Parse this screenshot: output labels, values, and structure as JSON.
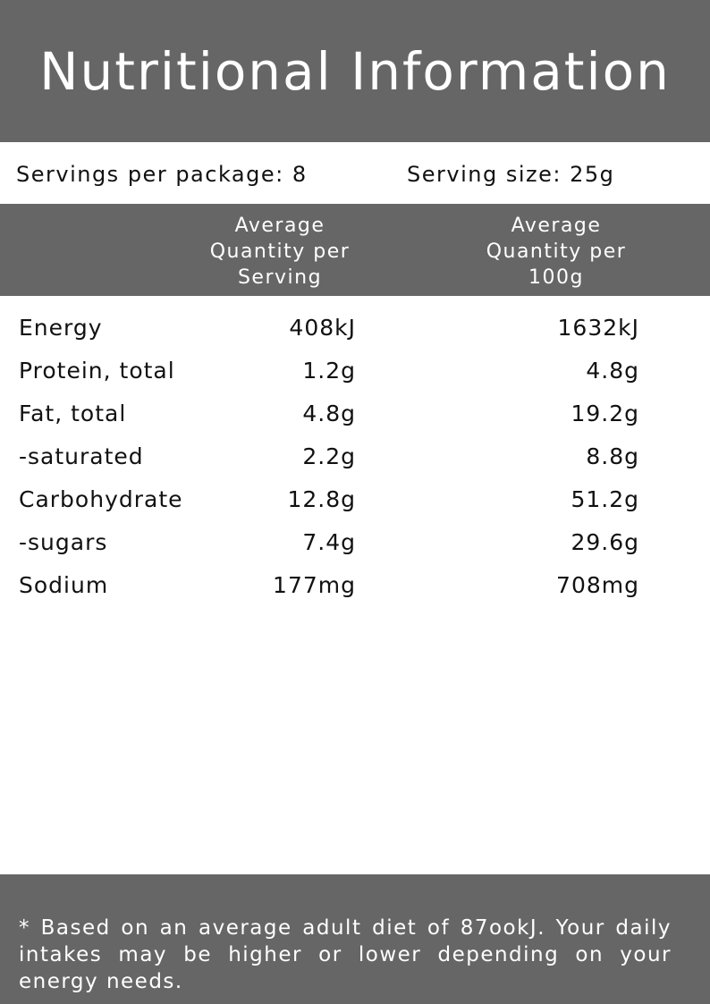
{
  "title": "Nutritional Information",
  "servings": {
    "per_package": "Servings per package: 8",
    "serving_size": "Serving size: 25g"
  },
  "columns": {
    "per_serving": [
      "Average",
      "Quantity per",
      "Serving"
    ],
    "per_100g": [
      "Average",
      "Quantity per",
      "100g"
    ]
  },
  "rows": [
    {
      "name": "Energy",
      "serving": "408kJ",
      "per100g": "1632kJ"
    },
    {
      "name": "Protein, total",
      "serving": "1.2g",
      "per100g": "4.8g"
    },
    {
      "name": "Fat, total",
      "serving": "4.8g",
      "per100g": "19.2g"
    },
    {
      "name": "-saturated",
      "serving": "2.2g",
      "per100g": "8.8g"
    },
    {
      "name": "Carbohydrate",
      "serving": "12.8g",
      "per100g": "51.2g"
    },
    {
      "name": "-sugars",
      "serving": "7.4g",
      "per100g": "29.6g"
    },
    {
      "name": "Sodium",
      "serving": "177mg",
      "per100g": "708mg"
    }
  ],
  "footnote": "* Based on an average adult diet of 87ookJ. Your daily intakes may be higher or lower depending on your energy needs.",
  "colors": {
    "band": "#666666",
    "band_text": "#ffffff",
    "body_text": "#111111"
  }
}
